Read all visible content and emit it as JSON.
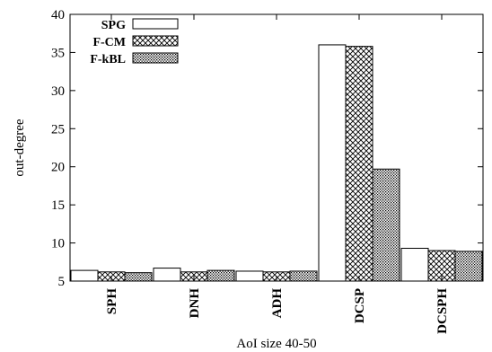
{
  "chart_data": {
    "type": "bar",
    "categories": [
      "SPH",
      "DNH",
      "ADH",
      "DCSP",
      "DCSPH"
    ],
    "series": [
      {
        "name": "SPG",
        "values": [
          6.4,
          6.7,
          6.3,
          36.0,
          9.3
        ]
      },
      {
        "name": "F-CM",
        "values": [
          6.2,
          6.2,
          6.2,
          35.8,
          9.0
        ]
      },
      {
        "name": "F-kBL",
        "values": [
          6.1,
          6.4,
          6.3,
          19.7,
          8.9
        ]
      }
    ],
    "xlabel": "AoI size 40-50",
    "ylabel": "out-degree",
    "ylim": [
      5,
      40
    ],
    "yticks": [
      5,
      10,
      15,
      20,
      25,
      30,
      35,
      40
    ],
    "legend_position": "top-left",
    "grid": false
  }
}
